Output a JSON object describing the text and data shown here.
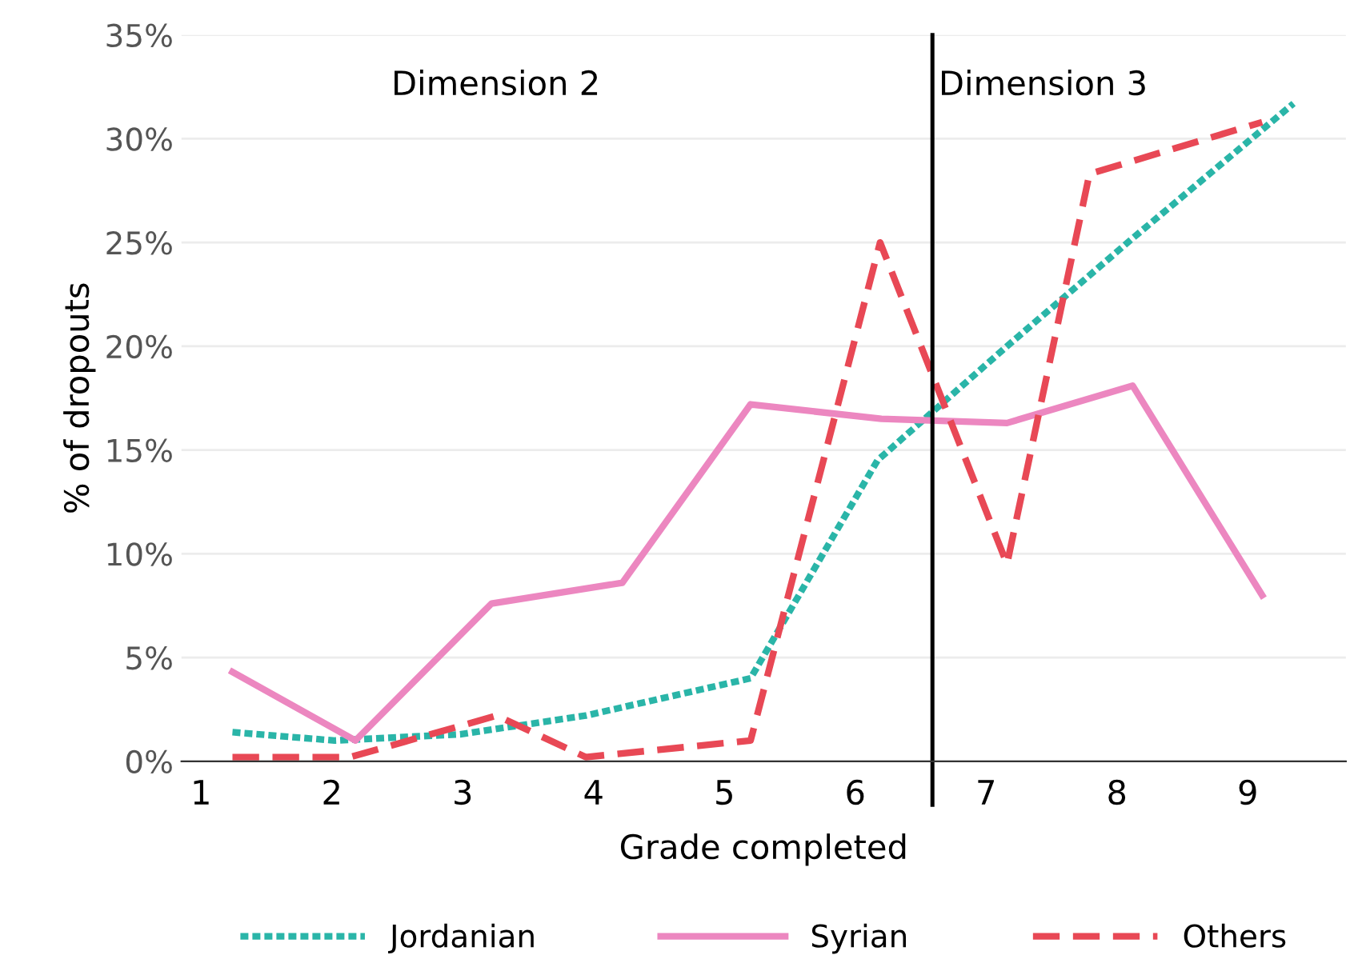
{
  "chart_data": {
    "type": "line",
    "xlabel": "Grade completed",
    "ylabel": "% of dropouts",
    "xlim": [
      0.85,
      9.75
    ],
    "xticks": [
      1,
      2,
      3,
      4,
      5,
      6,
      7,
      8,
      9
    ],
    "ylim": [
      0,
      35
    ],
    "yticks": [
      {
        "value": 0,
        "label": "0%"
      },
      {
        "value": 5,
        "label": "5%"
      },
      {
        "value": 10,
        "label": "10%"
      },
      {
        "value": 15,
        "label": "15%"
      },
      {
        "value": 20,
        "label": "20%"
      },
      {
        "value": 25,
        "label": "25%"
      },
      {
        "value": 30,
        "label": "30%"
      },
      {
        "value": 35,
        "label": "35%"
      }
    ],
    "grid": "y",
    "legend": "bottom",
    "marker": "none",
    "series": [
      {
        "name": "Jordanian",
        "color": "#2ab5a8",
        "line_style": "dotted",
        "x": [
          1.24,
          2.02,
          2.98,
          3.94,
          5.2,
          6.17,
          7.16,
          8.12,
          9.35
        ],
        "values": [
          1.4,
          1.0,
          1.3,
          2.2,
          4.0,
          14.5,
          20.0,
          25.2,
          31.7
        ]
      },
      {
        "name": "Syrian",
        "color": "#ec87c0",
        "line_style": "solid",
        "x": [
          1.24,
          2.18,
          3.22,
          4.22,
          5.2,
          6.2,
          7.16,
          8.12,
          9.11
        ],
        "values": [
          4.3,
          1.0,
          7.6,
          8.6,
          17.2,
          16.5,
          16.3,
          18.1,
          8.0
        ]
      },
      {
        "name": "Others",
        "color": "#e84855",
        "line_style": "dashed",
        "x": [
          1.24,
          2.14,
          3.26,
          3.94,
          5.2,
          6.19,
          7.16,
          7.79,
          9.11
        ],
        "values": [
          0.2,
          0.2,
          2.2,
          0.2,
          1.0,
          25.0,
          9.5,
          28.3,
          30.8
        ]
      }
    ],
    "ref_lines": [
      {
        "axis": "x",
        "value": 6.59,
        "color": "#000000",
        "line_style": "solid"
      }
    ],
    "annotations": [
      "Dimension 2",
      "Dimension 3"
    ]
  }
}
